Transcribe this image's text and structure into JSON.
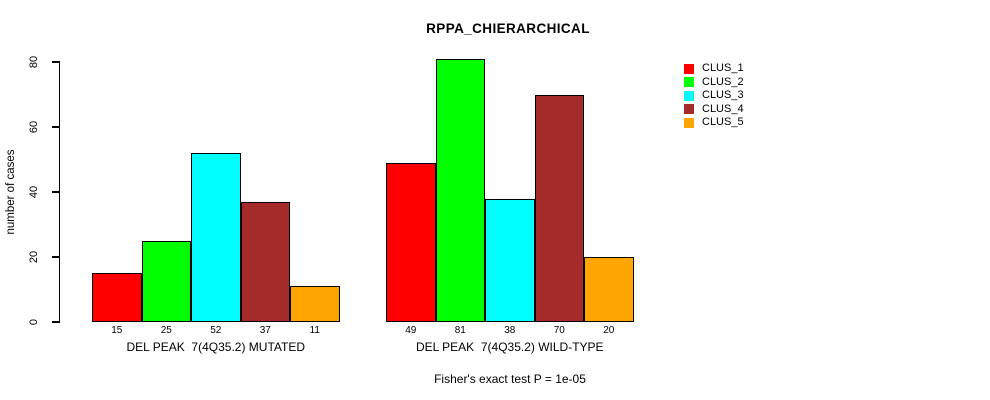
{
  "chart_data": {
    "type": "bar",
    "title": "RPPA_CHIERARCHICAL",
    "ylabel": "number of cases",
    "xlabel": "",
    "ylim": [
      0,
      81
    ],
    "yticks": [
      0,
      20,
      40,
      60,
      80
    ],
    "grid": false,
    "legend_position": "right",
    "categories": [
      "DEL PEAK  7(4Q35.2) MUTATED",
      "DEL PEAK  7(4Q35.2) WILD-TYPE"
    ],
    "series": [
      {
        "name": "CLUS_1",
        "color": "#FF0000",
        "values": [
          15,
          49
        ]
      },
      {
        "name": "CLUS_2",
        "color": "#00FF00",
        "values": [
          25,
          81
        ]
      },
      {
        "name": "CLUS_3",
        "color": "#00FFFF",
        "values": [
          52,
          38
        ]
      },
      {
        "name": "CLUS_4",
        "color": "#A52A2A",
        "values": [
          37,
          70
        ]
      },
      {
        "name": "CLUS_5",
        "color": "#FFA500",
        "values": [
          11,
          20
        ]
      }
    ],
    "bar_value_labels": [
      [
        15,
        25,
        52,
        37,
        11
      ],
      [
        49,
        81,
        38,
        70,
        20
      ]
    ],
    "annotation": "Fisher's exact test P = 1e-05"
  },
  "colors": {
    "background": "#FFFFFF",
    "axis": "#000000",
    "bar_border": "#000000"
  }
}
